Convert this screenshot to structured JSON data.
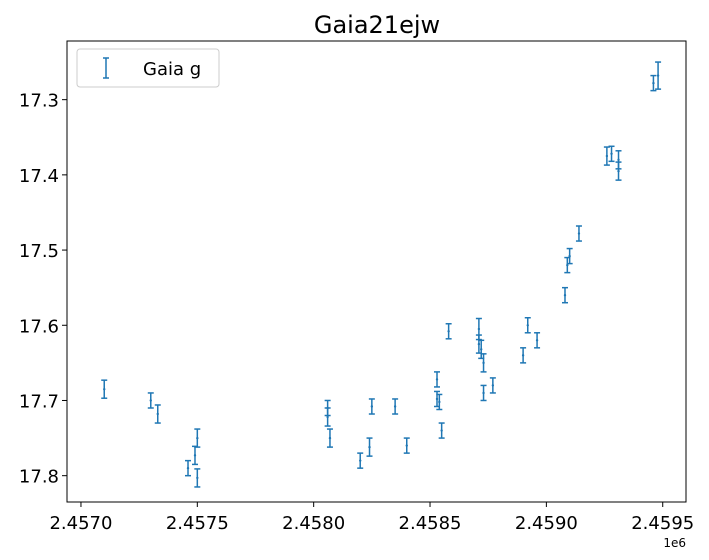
{
  "chart_data": {
    "type": "scatter",
    "title": "Gaia21ejw",
    "xlabel": "",
    "ylabel": "",
    "x_offset_label": "1e6",
    "x_tick_values": [
      2.457,
      2.4575,
      2.458,
      2.4585,
      2.459,
      2.4595
    ],
    "x_tick_labels": [
      "2.4570",
      "2.4575",
      "2.4580",
      "2.4585",
      "2.4590",
      "2.4595"
    ],
    "y_tick_values": [
      17.3,
      17.4,
      17.5,
      17.6,
      17.7,
      17.8
    ],
    "y_tick_labels": [
      "17.3",
      "17.4",
      "17.5",
      "17.6",
      "17.7",
      "17.8"
    ],
    "xlim": [
      2.45694,
      2.4596
    ],
    "ylim": [
      17.835,
      17.222
    ],
    "y_inverted": true,
    "grid": false,
    "legend_position": "top-left",
    "color": "#1f77b4",
    "series": [
      {
        "name": "Gaia g",
        "marker": "errorbar",
        "x": [
          2.4571,
          2.4573,
          2.45733,
          2.45746,
          2.45749,
          2.4575,
          2.4575,
          2.45806,
          2.45806,
          2.45807,
          2.4582,
          2.45824,
          2.45825,
          2.45835,
          2.4584,
          2.45853,
          2.45853,
          2.45854,
          2.45855,
          2.45858,
          2.45871,
          2.45871,
          2.45872,
          2.45873,
          2.45873,
          2.45877,
          2.4589,
          2.45892,
          2.45896,
          2.45908,
          2.45909,
          2.4591,
          2.45914,
          2.45926,
          2.45928,
          2.45931,
          2.45931,
          2.45946,
          2.45948
        ],
        "y": [
          17.685,
          17.7,
          17.718,
          17.79,
          17.773,
          17.803,
          17.75,
          17.722,
          17.71,
          17.75,
          17.78,
          17.762,
          17.708,
          17.708,
          17.76,
          17.672,
          17.698,
          17.702,
          17.74,
          17.608,
          17.605,
          17.625,
          17.632,
          17.69,
          17.65,
          17.68,
          17.64,
          17.6,
          17.62,
          17.56,
          17.52,
          17.508,
          17.478,
          17.375,
          17.372,
          17.38,
          17.395,
          17.278,
          17.268
        ],
        "err": [
          0.012,
          0.01,
          0.012,
          0.01,
          0.012,
          0.012,
          0.012,
          0.012,
          0.01,
          0.012,
          0.01,
          0.012,
          0.01,
          0.01,
          0.01,
          0.01,
          0.01,
          0.01,
          0.01,
          0.01,
          0.014,
          0.012,
          0.012,
          0.01,
          0.012,
          0.01,
          0.01,
          0.01,
          0.01,
          0.01,
          0.01,
          0.01,
          0.01,
          0.012,
          0.01,
          0.012,
          0.012,
          0.01,
          0.018
        ]
      }
    ]
  }
}
